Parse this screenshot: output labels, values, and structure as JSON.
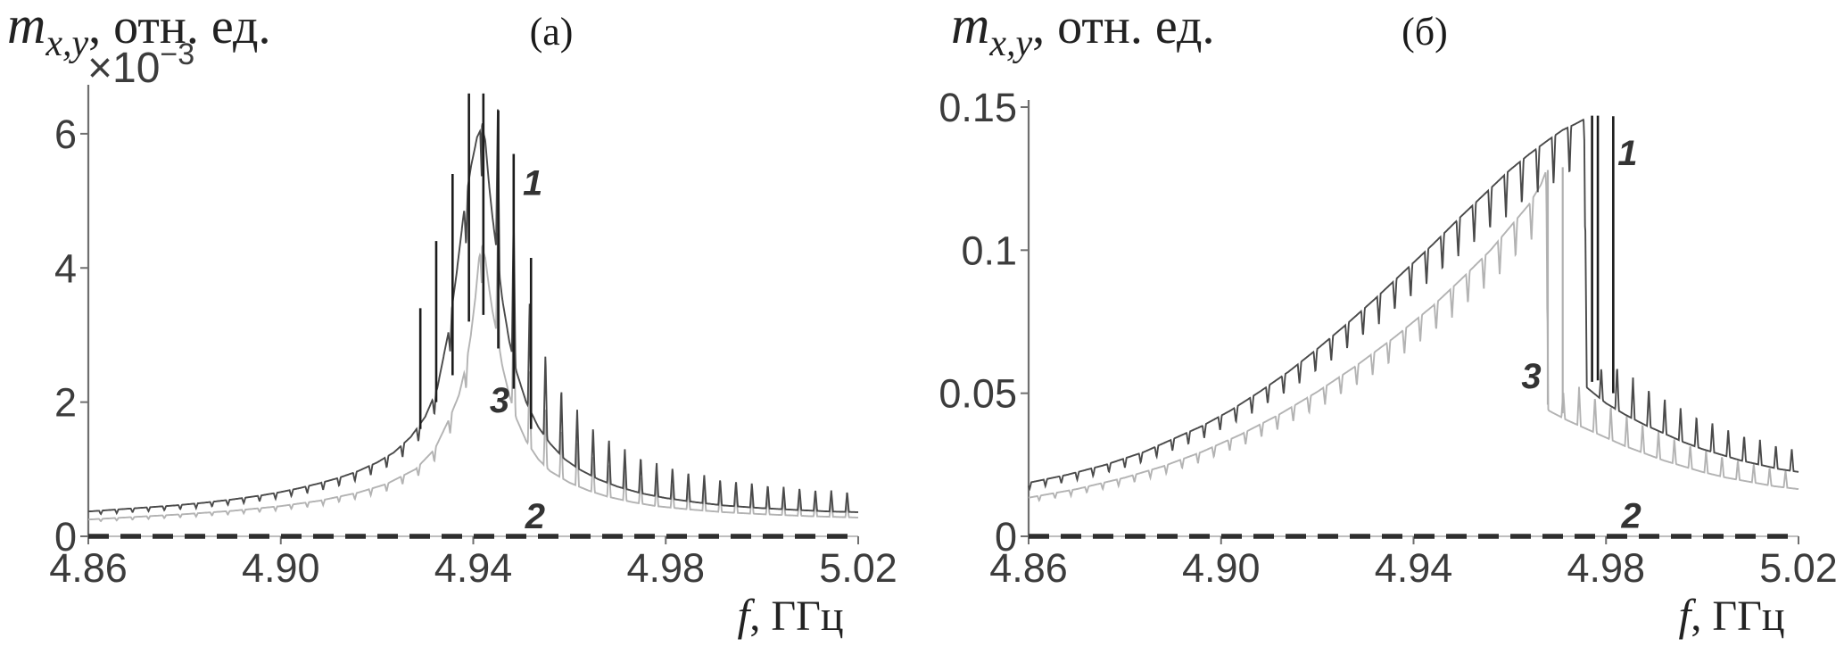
{
  "figure_colors": {
    "background": "#ffffff",
    "axis": "#6f6f6f",
    "axis_baseline": "#aaaaaa",
    "tick_text": "#3c3c3c",
    "label_text": "#222222",
    "curve1": "#4a4a4a",
    "curve2_dashed": "#2e2e2e",
    "curve3": "#b3b3b3",
    "spike_dark": "#1c1c1c",
    "spike_gray": "#b0b0b0"
  },
  "chart_data": [
    {
      "type": "line",
      "title": "(a)",
      "ylabel": "m_x,y, отн. ед.",
      "ylabel_parts": {
        "main": "m",
        "sub": "x,y",
        "rest": ", отн. ед."
      },
      "y_scale_note": "×10⁻³",
      "y_scale_parts": {
        "base": "×10",
        "exp": "−3"
      },
      "xlabel": "f, ГГц",
      "xlabel_parts": {
        "main": "f",
        "rest": ", ГГц"
      },
      "xlim": [
        4.86,
        5.02
      ],
      "ylim": [
        0,
        6.73
      ],
      "xticks": [
        4.86,
        4.9,
        4.94,
        4.98,
        5.02
      ],
      "xtick_labels": [
        "4.86",
        "4.90",
        "4.94",
        "4.98",
        "5.02"
      ],
      "yticks": [
        0,
        2,
        4,
        6
      ],
      "ytick_labels": [
        "0",
        "2",
        "4",
        "6"
      ],
      "grid": false,
      "comb_period_ghz": 0.0033,
      "series": [
        {
          "name": "1",
          "role": "curve1",
          "style": "solid",
          "peak_f": 4.9418,
          "cusp_depth": 0.14,
          "spike_gain": 0.85,
          "points": [
            [
              4.86,
              0.37
            ],
            [
              4.866,
              0.4
            ],
            [
              4.872,
              0.43
            ],
            [
              4.878,
              0.46
            ],
            [
              4.884,
              0.5
            ],
            [
              4.89,
              0.55
            ],
            [
              4.896,
              0.61
            ],
            [
              4.9,
              0.66
            ],
            [
              4.904,
              0.72
            ],
            [
              4.908,
              0.79
            ],
            [
              4.912,
              0.87
            ],
            [
              4.916,
              0.97
            ],
            [
              4.92,
              1.1
            ],
            [
              4.9235,
              1.25
            ],
            [
              4.927,
              1.48
            ],
            [
              4.93,
              1.78
            ],
            [
              4.9325,
              2.2
            ],
            [
              4.935,
              3.1
            ],
            [
              4.9365,
              3.9
            ],
            [
              4.938,
              4.8
            ],
            [
              4.9395,
              5.5
            ],
            [
              4.9408,
              5.95
            ],
            [
              4.9418,
              6.1
            ],
            [
              4.9425,
              5.9
            ],
            [
              4.9432,
              5.3
            ],
            [
              4.944,
              4.75
            ],
            [
              4.9448,
              4.3
            ],
            [
              4.946,
              3.55
            ],
            [
              4.9475,
              2.9
            ],
            [
              4.949,
              2.45
            ],
            [
              4.951,
              2.0
            ],
            [
              4.9535,
              1.63
            ],
            [
              4.956,
              1.38
            ],
            [
              4.959,
              1.15
            ],
            [
              4.962,
              1.0
            ],
            [
              4.966,
              0.85
            ],
            [
              4.97,
              0.74
            ],
            [
              4.975,
              0.64
            ],
            [
              4.98,
              0.57
            ],
            [
              4.986,
              0.51
            ],
            [
              4.992,
              0.46
            ],
            [
              5.0,
              0.42
            ],
            [
              5.008,
              0.39
            ],
            [
              5.014,
              0.37
            ],
            [
              5.02,
              0.36
            ]
          ]
        },
        {
          "name": "2",
          "role": "curve2_dashed",
          "style": "dashed",
          "points": [
            [
              4.86,
              0.0
            ],
            [
              5.02,
              0.0
            ]
          ]
        },
        {
          "name": "3",
          "role": "curve3",
          "style": "solid",
          "peak_f": 4.9418,
          "cusp_depth": 0.14,
          "spike_gain": 0.85,
          "points": [
            [
              4.86,
              0.25
            ],
            [
              4.87,
              0.29
            ],
            [
              4.88,
              0.33
            ],
            [
              4.89,
              0.38
            ],
            [
              4.9,
              0.45
            ],
            [
              4.908,
              0.53
            ],
            [
              4.916,
              0.65
            ],
            [
              4.922,
              0.78
            ],
            [
              4.928,
              1.0
            ],
            [
              4.932,
              1.3
            ],
            [
              4.935,
              1.75
            ],
            [
              4.937,
              2.1
            ],
            [
              4.9385,
              2.55
            ],
            [
              4.9395,
              3.0
            ],
            [
              4.9405,
              3.6
            ],
            [
              4.9412,
              4.15
            ],
            [
              4.9418,
              4.3
            ],
            [
              4.9425,
              4.15
            ],
            [
              4.9432,
              3.75
            ],
            [
              4.944,
              3.35
            ],
            [
              4.945,
              3.0
            ],
            [
              4.946,
              2.55
            ],
            [
              4.9475,
              2.1
            ],
            [
              4.949,
              1.75
            ],
            [
              4.951,
              1.42
            ],
            [
              4.9535,
              1.15
            ],
            [
              4.956,
              0.97
            ],
            [
              4.96,
              0.8
            ],
            [
              4.964,
              0.68
            ],
            [
              4.968,
              0.59
            ],
            [
              4.973,
              0.51
            ],
            [
              4.978,
              0.45
            ],
            [
              4.985,
              0.4
            ],
            [
              4.992,
              0.36
            ],
            [
              5.0,
              0.33
            ],
            [
              5.01,
              0.3
            ],
            [
              5.02,
              0.28
            ]
          ]
        }
      ],
      "resonance_spikes": [
        {
          "f": 4.929,
          "top": 3.4,
          "bottom": 1.6,
          "color_role": "spike_dark"
        },
        {
          "f": 4.9323,
          "top": 4.4,
          "bottom": 2.0,
          "color_role": "spike_dark"
        },
        {
          "f": 4.9357,
          "top": 5.4,
          "bottom": 2.4,
          "color_role": "spike_dark"
        },
        {
          "f": 4.9391,
          "top": 6.6,
          "bottom": 3.2,
          "color_role": "spike_dark"
        },
        {
          "f": 4.9421,
          "top": 6.6,
          "bottom": 3.3,
          "color_role": "spike_dark"
        },
        {
          "f": 4.9452,
          "top": 6.35,
          "bottom": 2.8,
          "color_role": "spike_dark"
        },
        {
          "f": 4.9484,
          "top": 5.7,
          "bottom": 2.2,
          "color_role": "spike_dark"
        },
        {
          "f": 4.952,
          "top": 4.15,
          "bottom": 1.6,
          "color_role": "spike_dark"
        }
      ],
      "curve_labels": [
        {
          "text": "1",
          "f": 4.9503,
          "v": 5.09
        },
        {
          "text": "3",
          "f": 4.9434,
          "v": 1.85
        },
        {
          "text": "2",
          "f": 4.9508,
          "v": 0.12
        }
      ]
    },
    {
      "type": "line",
      "title": "(б)",
      "ylabel": "m_x,y, отн. ед.",
      "ylabel_parts": {
        "main": "m",
        "sub": "x,y",
        "rest": ", отн. ед."
      },
      "y_scale_note": "",
      "y_scale_parts": {
        "base": "",
        "exp": ""
      },
      "xlabel": "f, ГГц",
      "xlabel_parts": {
        "main": "f",
        "rest": ", ГГц"
      },
      "xlim": [
        4.86,
        5.02
      ],
      "ylim": [
        0,
        0.1525
      ],
      "xticks": [
        4.86,
        4.9,
        4.94,
        4.98,
        5.02
      ],
      "xtick_labels": [
        "4.86",
        "4.90",
        "4.94",
        "4.98",
        "5.02"
      ],
      "yticks": [
        0,
        0.05,
        0.1,
        0.15
      ],
      "ytick_labels": [
        "0",
        "0.05",
        "0.1",
        "0.15"
      ],
      "grid": false,
      "comb_period_ghz": 0.0033,
      "series": [
        {
          "name": "1",
          "role": "curve1",
          "style": "solid",
          "peak_f": 4.9757,
          "cusp_depth": 0.12,
          "spike_gain": 0.35,
          "points": [
            [
              4.86,
              0.0187
            ],
            [
              4.868,
              0.0215
            ],
            [
              4.876,
              0.025
            ],
            [
              4.884,
              0.0295
            ],
            [
              4.89,
              0.034
            ],
            [
              4.896,
              0.0385
            ],
            [
              4.902,
              0.044
            ],
            [
              4.908,
              0.0505
            ],
            [
              4.914,
              0.0575
            ],
            [
              4.92,
              0.0655
            ],
            [
              4.926,
              0.074
            ],
            [
              4.932,
              0.083
            ],
            [
              4.938,
              0.0925
            ],
            [
              4.944,
              0.102
            ],
            [
              4.95,
              0.112
            ],
            [
              4.955,
              0.12
            ],
            [
              4.96,
              0.128
            ],
            [
              4.964,
              0.1335
            ],
            [
              4.968,
              0.1385
            ],
            [
              4.971,
              0.142
            ],
            [
              4.9735,
              0.144
            ],
            [
              4.9755,
              0.1458
            ],
            [
              4.976,
              0.052
            ],
            [
              4.98,
              0.0465
            ],
            [
              4.984,
              0.0425
            ],
            [
              4.988,
              0.039
            ],
            [
              4.992,
              0.036
            ],
            [
              4.996,
              0.033
            ],
            [
              5.0,
              0.0305
            ],
            [
              5.004,
              0.0285
            ],
            [
              5.008,
              0.0265
            ],
            [
              5.012,
              0.025
            ],
            [
              5.016,
              0.0235
            ],
            [
              5.02,
              0.0225
            ]
          ]
        },
        {
          "name": "2",
          "role": "curve2_dashed",
          "style": "dashed",
          "points": [
            [
              4.86,
              0.0
            ],
            [
              5.02,
              0.0
            ]
          ]
        },
        {
          "name": "3",
          "role": "curve3",
          "style": "solid",
          "peak_f": 4.9678,
          "cusp_depth": 0.12,
          "spike_gain": 0.35,
          "points": [
            [
              4.86,
              0.0135
            ],
            [
              4.87,
              0.0165
            ],
            [
              4.88,
              0.0205
            ],
            [
              4.888,
              0.0245
            ],
            [
              4.896,
              0.0295
            ],
            [
              4.904,
              0.0355
            ],
            [
              4.912,
              0.0425
            ],
            [
              4.92,
              0.0505
            ],
            [
              4.928,
              0.0595
            ],
            [
              4.936,
              0.0695
            ],
            [
              4.944,
              0.0805
            ],
            [
              4.95,
              0.09
            ],
            [
              4.956,
              0.1
            ],
            [
              4.96,
              0.108
            ],
            [
              4.964,
              0.116
            ],
            [
              4.9665,
              0.123
            ],
            [
              4.9676,
              0.128
            ],
            [
              4.968,
              0.044
            ],
            [
              4.972,
              0.0405
            ],
            [
              4.976,
              0.0375
            ],
            [
              4.98,
              0.0345
            ],
            [
              4.984,
              0.0315
            ],
            [
              4.988,
              0.029
            ],
            [
              4.992,
              0.0265
            ],
            [
              4.996,
              0.0245
            ],
            [
              5.0,
              0.0225
            ],
            [
              5.005,
              0.0205
            ],
            [
              5.01,
              0.019
            ],
            [
              5.015,
              0.0175
            ],
            [
              5.02,
              0.0165
            ]
          ]
        }
      ],
      "resonance_spikes": [
        {
          "f": 4.9679,
          "top": 0.128,
          "bottom": 0.046,
          "color_role": "spike_gray"
        },
        {
          "f": 4.971,
          "top": 0.129,
          "bottom": 0.043,
          "color_role": "spike_gray"
        },
        {
          "f": 4.9771,
          "top": 0.147,
          "bottom": 0.054,
          "color_role": "spike_dark"
        },
        {
          "f": 4.9783,
          "top": 0.147,
          "bottom": 0.0545,
          "color_role": "spike_dark"
        },
        {
          "f": 4.9815,
          "top": 0.1468,
          "bottom": 0.05,
          "color_role": "spike_dark"
        }
      ],
      "curve_labels": [
        {
          "text": "1",
          "f": 4.9824,
          "v": 0.1297
        },
        {
          "text": "3",
          "f": 4.9624,
          "v": 0.0518
        },
        {
          "text": "2",
          "f": 4.9832,
          "v": 0.003
        }
      ]
    }
  ]
}
